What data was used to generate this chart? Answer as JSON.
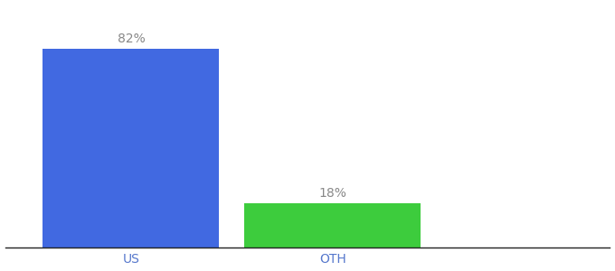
{
  "categories": [
    "US",
    "OTH"
  ],
  "values": [
    82,
    18
  ],
  "bar_colors": [
    "#4169e1",
    "#3dcc3d"
  ],
  "labels": [
    "82%",
    "18%"
  ],
  "background_color": "#ffffff",
  "ylim": [
    0,
    100
  ],
  "label_fontsize": 10,
  "tick_fontsize": 10,
  "tick_color": "#5577cc",
  "label_color": "#888888",
  "bar_width": 0.35,
  "x_positions": [
    0.25,
    0.65
  ],
  "xlim": [
    0.0,
    1.2
  ],
  "spine_color": "#222222"
}
